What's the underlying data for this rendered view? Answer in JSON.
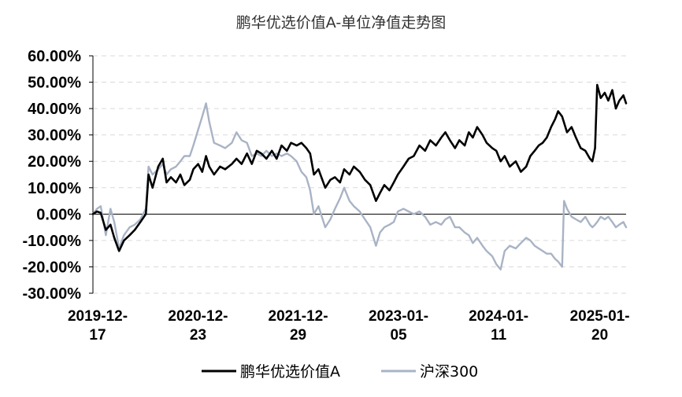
{
  "chart_data": {
    "type": "line",
    "title": "鹏华优选价值A-单位净值走势图",
    "xlabel": "",
    "ylabel": "",
    "ylim": [
      -30,
      60
    ],
    "yticks": [
      "60.00%",
      "50.00%",
      "40.00%",
      "30.00%",
      "20.00%",
      "10.00%",
      "0.00%",
      "-10.00%",
      "-20.00%",
      "-30.00%"
    ],
    "ytick_values": [
      60,
      50,
      40,
      30,
      20,
      10,
      0,
      -10,
      -20,
      -30
    ],
    "xticks": [
      {
        "line1": "2019-12-",
        "line2": "17",
        "date": "2019-12-17"
      },
      {
        "line1": "2020-12-",
        "line2": "23",
        "date": "2020-12-23"
      },
      {
        "line1": "2021-12-",
        "line2": "29",
        "date": "2021-12-29"
      },
      {
        "line1": "2023-01-",
        "line2": "05",
        "date": "2023-01-05"
      },
      {
        "line1": "2024-01-",
        "line2": "11",
        "date": "2024-01-11"
      },
      {
        "line1": "2025-01-",
        "line2": "20",
        "date": "2025-01-20"
      }
    ],
    "grid": true,
    "legend_position": "bottom",
    "series": [
      {
        "name": "鹏华优选价值A",
        "color": "#000000",
        "points": [
          [
            "2019-12-17",
            0
          ],
          [
            "2020-01-01",
            1
          ],
          [
            "2020-01-15",
            0.5
          ],
          [
            "2020-02-03",
            -6
          ],
          [
            "2020-02-20",
            -4
          ],
          [
            "2020-03-05",
            -9
          ],
          [
            "2020-03-23",
            -14
          ],
          [
            "2020-04-10",
            -10
          ],
          [
            "2020-05-01",
            -8
          ],
          [
            "2020-05-20",
            -6
          ],
          [
            "2020-06-10",
            -3
          ],
          [
            "2020-06-30",
            0
          ],
          [
            "2020-07-10",
            15
          ],
          [
            "2020-07-25",
            10
          ],
          [
            "2020-08-15",
            18
          ],
          [
            "2020-09-01",
            21
          ],
          [
            "2020-09-15",
            12
          ],
          [
            "2020-10-01",
            14
          ],
          [
            "2020-10-20",
            12
          ],
          [
            "2020-11-05",
            15
          ],
          [
            "2020-11-20",
            11
          ],
          [
            "2020-12-10",
            13
          ],
          [
            "2020-12-23",
            17
          ],
          [
            "2021-01-10",
            19
          ],
          [
            "2021-01-25",
            16
          ],
          [
            "2021-02-08",
            22
          ],
          [
            "2021-02-20",
            18
          ],
          [
            "2021-03-10",
            15
          ],
          [
            "2021-04-01",
            18
          ],
          [
            "2021-04-20",
            17
          ],
          [
            "2021-05-15",
            19
          ],
          [
            "2021-06-01",
            21
          ],
          [
            "2021-06-20",
            19
          ],
          [
            "2021-07-10",
            23
          ],
          [
            "2021-07-28",
            19
          ],
          [
            "2021-08-15",
            24
          ],
          [
            "2021-09-01",
            23
          ],
          [
            "2021-09-20",
            21
          ],
          [
            "2021-10-10",
            24
          ],
          [
            "2021-10-28",
            21
          ],
          [
            "2021-11-15",
            26
          ],
          [
            "2021-12-05",
            24
          ],
          [
            "2021-12-20",
            27
          ],
          [
            "2022-01-10",
            26
          ],
          [
            "2022-01-28",
            27
          ],
          [
            "2022-02-15",
            25
          ],
          [
            "2022-03-01",
            23
          ],
          [
            "2022-03-15",
            15
          ],
          [
            "2022-04-01",
            17
          ],
          [
            "2022-04-26",
            10
          ],
          [
            "2022-05-15",
            13
          ],
          [
            "2022-06-01",
            14
          ],
          [
            "2022-06-20",
            12
          ],
          [
            "2022-07-05",
            17
          ],
          [
            "2022-07-25",
            15
          ],
          [
            "2022-08-10",
            18
          ],
          [
            "2022-09-01",
            16
          ],
          [
            "2022-09-20",
            13
          ],
          [
            "2022-10-10",
            11
          ],
          [
            "2022-10-31",
            5
          ],
          [
            "2022-11-15",
            8
          ],
          [
            "2022-12-01",
            11
          ],
          [
            "2022-12-20",
            9
          ],
          [
            "2023-01-05",
            12
          ],
          [
            "2023-01-20",
            15
          ],
          [
            "2023-02-10",
            18
          ],
          [
            "2023-03-01",
            21
          ],
          [
            "2023-03-20",
            22
          ],
          [
            "2023-04-10",
            26
          ],
          [
            "2023-05-01",
            24
          ],
          [
            "2023-05-20",
            28
          ],
          [
            "2023-06-10",
            26
          ],
          [
            "2023-06-30",
            29
          ],
          [
            "2023-07-15",
            31
          ],
          [
            "2023-08-01",
            28
          ],
          [
            "2023-08-20",
            25
          ],
          [
            "2023-09-05",
            28
          ],
          [
            "2023-09-25",
            26
          ],
          [
            "2023-10-10",
            31
          ],
          [
            "2023-10-25",
            29
          ],
          [
            "2023-11-10",
            33
          ],
          [
            "2023-11-30",
            30
          ],
          [
            "2023-12-15",
            27
          ],
          [
            "2024-01-05",
            25
          ],
          [
            "2024-01-20",
            24
          ],
          [
            "2024-02-05",
            20
          ],
          [
            "2024-02-20",
            22
          ],
          [
            "2024-03-10",
            18
          ],
          [
            "2024-04-01",
            20
          ],
          [
            "2024-04-20",
            16
          ],
          [
            "2024-05-10",
            18
          ],
          [
            "2024-05-25",
            22
          ],
          [
            "2024-06-10",
            24
          ],
          [
            "2024-06-25",
            26
          ],
          [
            "2024-07-10",
            27
          ],
          [
            "2024-07-25",
            29
          ],
          [
            "2024-08-10",
            33
          ],
          [
            "2024-08-25",
            36
          ],
          [
            "2024-09-05",
            39
          ],
          [
            "2024-09-20",
            37
          ],
          [
            "2024-10-08",
            31
          ],
          [
            "2024-10-25",
            33
          ],
          [
            "2024-11-10",
            29
          ],
          [
            "2024-11-28",
            25
          ],
          [
            "2024-12-15",
            24
          ],
          [
            "2025-01-01",
            21
          ],
          [
            "2025-01-10",
            20
          ],
          [
            "2025-01-20",
            25
          ],
          [
            "2025-01-28",
            49
          ],
          [
            "2025-02-10",
            44
          ],
          [
            "2025-02-25",
            46
          ],
          [
            "2025-03-10",
            43
          ],
          [
            "2025-03-25",
            47
          ],
          [
            "2025-04-07",
            40
          ],
          [
            "2025-04-20",
            43
          ],
          [
            "2025-05-05",
            45
          ],
          [
            "2025-05-15",
            42
          ]
        ]
      },
      {
        "name": "沪深300",
        "color": "#a9b3c5",
        "points": [
          [
            "2019-12-17",
            0
          ],
          [
            "2020-01-01",
            2
          ],
          [
            "2020-01-15",
            3
          ],
          [
            "2020-02-03",
            -8
          ],
          [
            "2020-02-20",
            2
          ],
          [
            "2020-03-05",
            -3
          ],
          [
            "2020-03-23",
            -13
          ],
          [
            "2020-04-10",
            -8
          ],
          [
            "2020-05-01",
            -5
          ],
          [
            "2020-05-20",
            -4
          ],
          [
            "2020-06-10",
            -2
          ],
          [
            "2020-06-30",
            2
          ],
          [
            "2020-07-10",
            18
          ],
          [
            "2020-07-25",
            15
          ],
          [
            "2020-08-15",
            17
          ],
          [
            "2020-09-01",
            19
          ],
          [
            "2020-09-15",
            15
          ],
          [
            "2020-10-01",
            17
          ],
          [
            "2020-10-20",
            18
          ],
          [
            "2020-11-05",
            20
          ],
          [
            "2020-11-20",
            22
          ],
          [
            "2020-12-10",
            22
          ],
          [
            "2020-12-23",
            26
          ],
          [
            "2021-01-10",
            32
          ],
          [
            "2021-01-25",
            37
          ],
          [
            "2021-02-08",
            42
          ],
          [
            "2021-02-20",
            35
          ],
          [
            "2021-03-10",
            27
          ],
          [
            "2021-04-01",
            26
          ],
          [
            "2021-04-20",
            25
          ],
          [
            "2021-05-15",
            27
          ],
          [
            "2021-06-01",
            31
          ],
          [
            "2021-06-20",
            28
          ],
          [
            "2021-07-10",
            27
          ],
          [
            "2021-07-28",
            22
          ],
          [
            "2021-08-15",
            23
          ],
          [
            "2021-09-01",
            22
          ],
          [
            "2021-09-20",
            24
          ],
          [
            "2021-10-10",
            22
          ],
          [
            "2021-10-28",
            23
          ],
          [
            "2021-11-15",
            22
          ],
          [
            "2021-12-05",
            23
          ],
          [
            "2021-12-20",
            22
          ],
          [
            "2022-01-10",
            20
          ],
          [
            "2022-01-28",
            16
          ],
          [
            "2022-02-15",
            14
          ],
          [
            "2022-03-01",
            9
          ],
          [
            "2022-03-15",
            0
          ],
          [
            "2022-04-01",
            3
          ],
          [
            "2022-04-26",
            -5
          ],
          [
            "2022-05-15",
            -2
          ],
          [
            "2022-06-01",
            2
          ],
          [
            "2022-06-20",
            6
          ],
          [
            "2022-07-05",
            10
          ],
          [
            "2022-07-25",
            5
          ],
          [
            "2022-08-10",
            3
          ],
          [
            "2022-09-01",
            1
          ],
          [
            "2022-09-20",
            -2
          ],
          [
            "2022-10-10",
            -5
          ],
          [
            "2022-10-31",
            -12
          ],
          [
            "2022-11-15",
            -7
          ],
          [
            "2022-12-01",
            -5
          ],
          [
            "2022-12-20",
            -4
          ],
          [
            "2023-01-05",
            -3
          ],
          [
            "2023-01-20",
            1
          ],
          [
            "2023-02-10",
            2
          ],
          [
            "2023-03-01",
            1
          ],
          [
            "2023-03-20",
            0
          ],
          [
            "2023-04-10",
            1
          ],
          [
            "2023-05-01",
            -1
          ],
          [
            "2023-05-20",
            -4
          ],
          [
            "2023-06-10",
            -3
          ],
          [
            "2023-06-30",
            -4
          ],
          [
            "2023-07-15",
            -2
          ],
          [
            "2023-08-01",
            -1
          ],
          [
            "2023-08-20",
            -5
          ],
          [
            "2023-09-05",
            -5
          ],
          [
            "2023-09-25",
            -7
          ],
          [
            "2023-10-10",
            -8
          ],
          [
            "2023-10-25",
            -11
          ],
          [
            "2023-11-10",
            -9
          ],
          [
            "2023-11-30",
            -12
          ],
          [
            "2023-12-15",
            -14
          ],
          [
            "2024-01-05",
            -16
          ],
          [
            "2024-01-20",
            -19
          ],
          [
            "2024-02-05",
            -21
          ],
          [
            "2024-02-20",
            -14
          ],
          [
            "2024-03-10",
            -12
          ],
          [
            "2024-04-01",
            -13
          ],
          [
            "2024-04-20",
            -11
          ],
          [
            "2024-05-10",
            -9
          ],
          [
            "2024-05-25",
            -10
          ],
          [
            "2024-06-10",
            -12
          ],
          [
            "2024-06-25",
            -13
          ],
          [
            "2024-07-10",
            -14
          ],
          [
            "2024-07-25",
            -15
          ],
          [
            "2024-08-10",
            -15
          ],
          [
            "2024-08-25",
            -17
          ],
          [
            "2024-09-05",
            -18
          ],
          [
            "2024-09-20",
            -20
          ],
          [
            "2024-09-27",
            5
          ],
          [
            "2024-10-08",
            2
          ],
          [
            "2024-10-25",
            -1
          ],
          [
            "2024-11-10",
            -2
          ],
          [
            "2024-11-28",
            -3
          ],
          [
            "2024-12-15",
            -1
          ],
          [
            "2025-01-01",
            -4
          ],
          [
            "2025-01-10",
            -5
          ],
          [
            "2025-01-20",
            -4
          ],
          [
            "2025-01-28",
            -3
          ],
          [
            "2025-02-10",
            -1
          ],
          [
            "2025-02-25",
            -2
          ],
          [
            "2025-03-10",
            -1
          ],
          [
            "2025-03-25",
            -3
          ],
          [
            "2025-04-07",
            -5
          ],
          [
            "2025-04-20",
            -4
          ],
          [
            "2025-05-05",
            -3
          ],
          [
            "2025-05-15",
            -5
          ]
        ]
      }
    ]
  }
}
